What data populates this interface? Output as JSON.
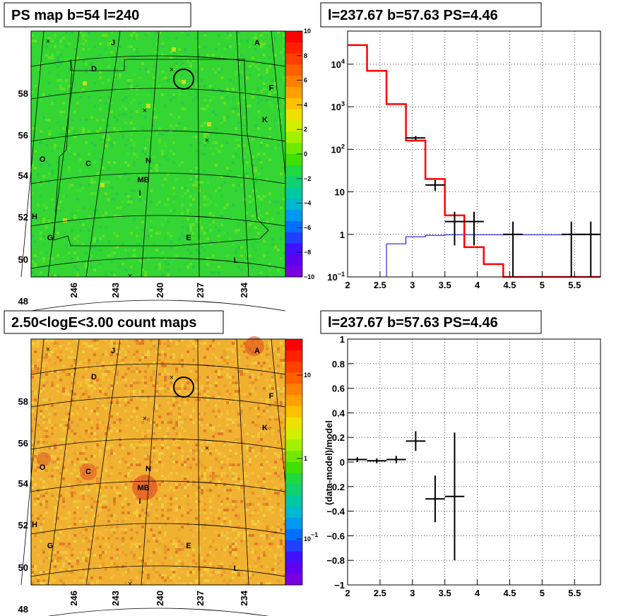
{
  "panels": {
    "ps_map": {
      "title": "PS map b=54 l=240"
    },
    "spectrum": {
      "title": "l=237.67 b=57.63 PS=4.46"
    },
    "count_map": {
      "title": "2.50<logE<3.00 count maps"
    },
    "residual": {
      "title": "l=237.67 b=57.63 PS=4.46"
    }
  },
  "map_axes": {
    "lat_ticks": [
      "58",
      "56",
      "54",
      "52",
      "50",
      "48"
    ],
    "lon_ticks": [
      "246",
      "243",
      "240",
      "237",
      "234"
    ]
  },
  "source_labels": [
    "A",
    "J",
    "D",
    "F",
    "K",
    "N",
    "C",
    "O",
    "MB",
    "I",
    "H",
    "G",
    "E",
    "L"
  ],
  "colors": {
    "ps_background": "#33d633",
    "count_background": "#f0b030",
    "model_line": "#ff0000",
    "background_line": "#0000cc",
    "data_marks": "#000000"
  },
  "chart_data": [
    {
      "type": "heatmap",
      "title": "PS map b=54 l=240",
      "colorbar": {
        "min": -10,
        "max": 10,
        "ticks": [
          "10",
          "8",
          "6",
          "4",
          "2",
          "0",
          "−2",
          "−4",
          "−6",
          "−8",
          "−10"
        ]
      }
    },
    {
      "type": "line",
      "title": "l=237.67 b=57.63 PS=4.46",
      "x_axis": {
        "range": [
          2,
          5.9
        ],
        "ticks": [
          "2",
          "2.5",
          "3",
          "3.5",
          "4",
          "4.5",
          "5",
          "5.5"
        ]
      },
      "y_axis": {
        "scale": "log",
        "range": [
          0.1,
          60000
        ],
        "ticks": [
          "10−1",
          "1",
          "10",
          "102",
          "103",
          "104"
        ]
      },
      "grid": true,
      "series": [
        {
          "kind": "model-step",
          "color": "#ff0000",
          "edges": [
            2,
            2.3,
            2.6,
            2.9,
            3.2,
            3.5,
            3.8,
            4.1,
            4.4,
            5.9
          ],
          "values": [
            28000,
            7000,
            1150,
            160,
            20,
            2.8,
            0.5,
            0.2,
            0.1
          ]
        },
        {
          "kind": "background-step",
          "color": "#0000cc",
          "edges": [
            2.3,
            2.6,
            2.9,
            3.2,
            3.5,
            5.9
          ],
          "values": [
            0.1,
            0.6,
            0.88,
            0.95,
            0.98,
            1.02
          ]
        },
        {
          "kind": "data-points",
          "color": "#000000",
          "points": [
            {
              "x": 3.05,
              "y": 185,
              "ylo": 165,
              "yhi": 205
            },
            {
              "x": 3.35,
              "y": 14.5,
              "ylo": 10.5,
              "yhi": 19
            },
            {
              "x": 3.65,
              "y": 2.0,
              "ylo": 0.55,
              "yhi": 3.4
            },
            {
              "x": 3.95,
              "y": 2.0,
              "ylo": 0.55,
              "yhi": 3.4
            },
            {
              "x": 4.55,
              "y": 1.0,
              "ylo": 0.1,
              "yhi": 2.0
            },
            {
              "x": 5.45,
              "y": 1.0,
              "ylo": 0.1,
              "yhi": 2.0
            },
            {
              "x": 5.75,
              "y": 1.0,
              "ylo": 0.1,
              "yhi": 2.0
            }
          ],
          "xerr": 0.15
        }
      ]
    },
    {
      "type": "heatmap",
      "title": "2.50<logE<3.00 count maps",
      "colorbar": {
        "scale": "log",
        "ticks": [
          "10",
          "1",
          "10−1"
        ]
      }
    },
    {
      "type": "scatter",
      "title": "l=237.67 b=57.63 PS=4.46",
      "ylabel": "(data-model)/model",
      "x_axis": {
        "range": [
          2,
          5.9
        ],
        "ticks": [
          "2",
          "2.5",
          "3",
          "3.5",
          "4",
          "4.5",
          "5",
          "5.5"
        ]
      },
      "y_axis": {
        "range": [
          -1,
          1
        ],
        "ticks": [
          "1",
          "0.8",
          "0.6",
          "0.4",
          "0.2",
          "0",
          "−0.2",
          "−0.4",
          "−0.6",
          "−0.8",
          "−1"
        ]
      },
      "grid": true,
      "points": [
        {
          "x": 2.15,
          "y": 0.02,
          "yerr": 0.02
        },
        {
          "x": 2.45,
          "y": 0.01,
          "yerr": 0.02
        },
        {
          "x": 2.75,
          "y": 0.02,
          "yerr": 0.03
        },
        {
          "x": 3.05,
          "y": 0.17,
          "yerr": 0.08
        },
        {
          "x": 3.35,
          "y": -0.3,
          "yerr": 0.19
        },
        {
          "x": 3.65,
          "y": -0.28,
          "yerr": 0.52
        }
      ],
      "xerr": 0.15
    }
  ]
}
